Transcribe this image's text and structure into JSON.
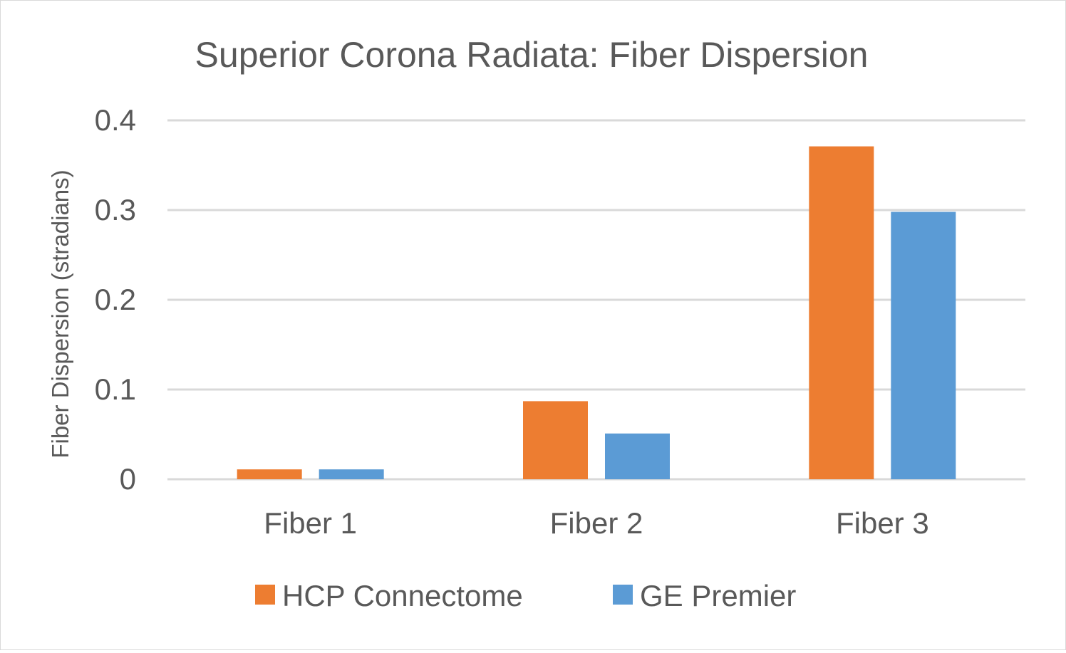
{
  "chart_data": {
    "type": "bar",
    "title": "Superior Corona Radiata: Fiber Dispersion",
    "xlabel": "",
    "ylabel": "Fiber Dispersion (stradians)",
    "categories": [
      "Fiber 1",
      "Fiber 2",
      "Fiber 3"
    ],
    "series": [
      {
        "name": "HCP Connectome",
        "color": "#ED7D31",
        "values": [
          0.011,
          0.087,
          0.371
        ]
      },
      {
        "name": "GE Premier",
        "color": "#5B9BD5",
        "values": [
          0.011,
          0.051,
          0.298
        ]
      }
    ],
    "ylim": [
      0,
      0.4
    ],
    "yticks": [
      0,
      0.1,
      0.2,
      0.3,
      0.4
    ],
    "ytick_labels": [
      "0",
      "0.1",
      "0.2",
      "0.3",
      "0.4"
    ],
    "grid": true,
    "legend_position": "bottom"
  }
}
